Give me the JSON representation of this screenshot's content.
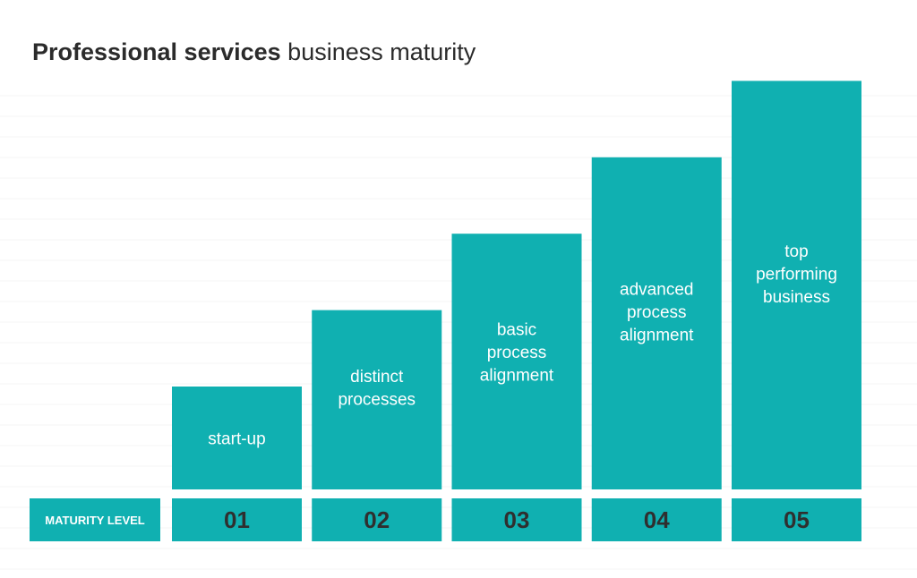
{
  "title": {
    "bold": "Professional services",
    "rest": " business maturity"
  },
  "colors": {
    "bar": "#10b0b1",
    "title_text": "#2b2b2b",
    "level_number_text": "#2f2f2f",
    "bar_text": "#ffffff"
  },
  "chart_data": {
    "type": "bar",
    "title": "Professional services business maturity",
    "xlabel": "MATURITY LEVEL",
    "ylabel": "",
    "categories": [
      "01",
      "02",
      "03",
      "04",
      "05"
    ],
    "bar_labels": [
      [
        "start-up"
      ],
      [
        "distinct",
        "processes"
      ],
      [
        "basic",
        "process",
        "alignment"
      ],
      [
        "advanced",
        "process",
        "alignment"
      ],
      [
        "top",
        "performing",
        "business"
      ]
    ],
    "values": [
      1,
      2,
      3,
      4,
      5
    ],
    "ylim": [
      0,
      5
    ],
    "grid": true,
    "legend": "none"
  }
}
